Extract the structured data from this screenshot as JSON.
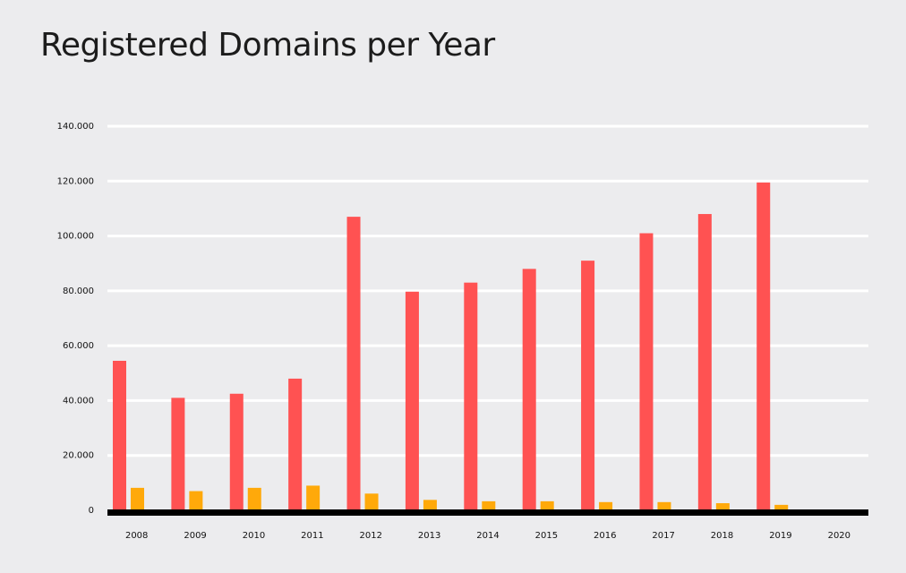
{
  "chart_data": {
    "type": "bar",
    "title": "Registered Domains per Year",
    "xlabel": "",
    "ylabel": "",
    "categories": [
      "2008",
      "2009",
      "2010",
      "2011",
      "2012",
      "2013",
      "2014",
      "2015",
      "2016",
      "2017",
      "2018",
      "2019",
      "2020"
    ],
    "series": [
      {
        "color": "#ff5252",
        "values": [
          54500,
          41000,
          42500,
          48000,
          107000,
          79700,
          83000,
          88000,
          91000,
          101000,
          108000,
          119500,
          200
        ]
      },
      {
        "color": "#ffa90a",
        "values": [
          8200,
          7000,
          8200,
          9000,
          6100,
          3800,
          3300,
          3300,
          3000,
          3000,
          2600,
          2000,
          0
        ]
      }
    ],
    "ylim": [
      0,
      140000
    ],
    "yticks": [
      0,
      20000,
      40000,
      60000,
      80000,
      100000,
      120000,
      140000
    ],
    "ytick_labels": [
      "0",
      "20.000",
      "40.000",
      "60.000",
      "80.000",
      "100.000",
      "120.000",
      "140.000"
    ],
    "grid": true,
    "legend": "none",
    "colors": {
      "background": "#ececee",
      "grid": "#ffffff",
      "axis": "#000000"
    }
  }
}
